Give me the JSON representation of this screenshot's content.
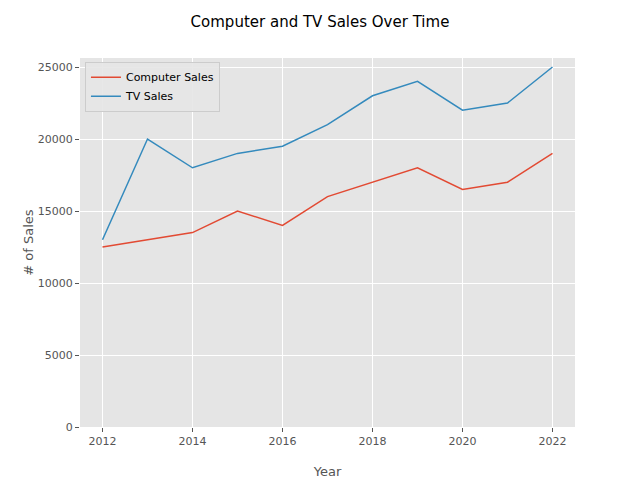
{
  "chart_data": {
    "type": "line",
    "title": "Computer and TV Sales Over Time",
    "x_label": "Year",
    "y_label": "# of Sales",
    "x": [
      2012,
      2013,
      2014,
      2015,
      2016,
      2017,
      2018,
      2019,
      2020,
      2021,
      2022
    ],
    "series": [
      {
        "name": "Computer Sales",
        "color": "#E24A33",
        "values": [
          12500,
          13000,
          13500,
          15000,
          14000,
          16000,
          17000,
          18000,
          16500,
          17000,
          19000
        ]
      },
      {
        "name": "TV Sales",
        "color": "#348ABD",
        "values": [
          13000,
          20000,
          18000,
          19000,
          19500,
          21000,
          23000,
          24000,
          22000,
          22500,
          25000
        ]
      }
    ],
    "xlim": [
      2011.5,
      2022.5
    ],
    "xticks": [
      2012,
      2014,
      2016,
      2018,
      2020,
      2022
    ],
    "ylim": [
      0,
      25625
    ],
    "yticks": [
      0,
      5000,
      10000,
      15000,
      20000,
      25000
    ],
    "grid": true,
    "legend": "upper left"
  }
}
